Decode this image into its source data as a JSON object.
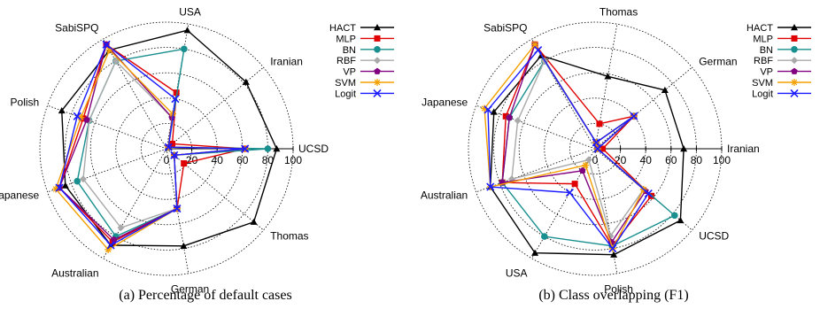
{
  "figure": {
    "captions": [
      "(a) Percentage of default cases",
      "(b) Class overlapping (F1)"
    ]
  },
  "legend": {
    "entries": [
      {
        "name": "HACT",
        "color": "#000000",
        "marker": "triangle"
      },
      {
        "name": "MLP",
        "color": "#e00000",
        "marker": "square"
      },
      {
        "name": "BN",
        "color": "#1a8f8f",
        "marker": "circle"
      },
      {
        "name": "RBF",
        "color": "#a9a9a9",
        "marker": "diamond"
      },
      {
        "name": "VP",
        "color": "#800080",
        "marker": "pentagon"
      },
      {
        "name": "SVM",
        "color": "#f5a000",
        "marker": "asterisk"
      },
      {
        "name": "Logit",
        "color": "#1a1aff",
        "marker": "x"
      }
    ]
  },
  "chart_data": [
    {
      "type": "radar",
      "caption": "(a) Percentage of default cases",
      "axes": [
        "UCSD",
        "Iranian",
        "USA",
        "SabiSPQ",
        "Polish",
        "Japanese",
        "Australian",
        "German",
        "Thomas"
      ],
      "ticks": [
        "0",
        "20",
        "40",
        "60",
        "80",
        "100"
      ],
      "rlim": [
        0,
        100
      ],
      "series": [
        {
          "name": "HACT",
          "values": [
            87,
            82,
            95,
            90,
            88,
            85,
            88,
            78,
            90
          ]
        },
        {
          "name": "MLP",
          "values": [
            62,
            6,
            45,
            95,
            70,
            90,
            85,
            48,
            18
          ]
        },
        {
          "name": "BN",
          "values": [
            80,
            2,
            80,
            80,
            65,
            75,
            80,
            48,
            8
          ]
        },
        {
          "name": "RBF",
          "values": [
            62,
            2,
            25,
            80,
            65,
            70,
            72,
            48,
            8
          ]
        },
        {
          "name": "VP",
          "values": [
            62,
            2,
            25,
            95,
            67,
            90,
            83,
            48,
            8
          ]
        },
        {
          "name": "SVM",
          "values": [
            62,
            2,
            28,
            90,
            72,
            93,
            92,
            48,
            8
          ]
        },
        {
          "name": "Logit",
          "values": [
            62,
            2,
            40,
            95,
            75,
            90,
            88,
            48,
            8
          ]
        }
      ]
    },
    {
      "type": "radar",
      "caption": "(b) Class overlapping (F1)",
      "axes": [
        "Iranian",
        "German",
        "Thomas",
        "SabiSPQ",
        "Japanese",
        "Australian",
        "USA",
        "Polish",
        "UCSD"
      ],
      "ticks": [
        "0",
        "20",
        "40",
        "60",
        "80",
        "100"
      ],
      "rlim": [
        0,
        100
      ],
      "series": [
        {
          "name": "HACT",
          "values": [
            70,
            72,
            58,
            85,
            85,
            88,
            95,
            85,
            88
          ]
        },
        {
          "name": "MLP",
          "values": [
            6,
            40,
            20,
            95,
            75,
            78,
            32,
            78,
            58
          ]
        },
        {
          "name": "BN",
          "values": [
            2,
            40,
            5,
            80,
            72,
            78,
            80,
            78,
            82
          ]
        },
        {
          "name": "RBF",
          "values": [
            2,
            40,
            5,
            80,
            65,
            70,
            10,
            70,
            50
          ]
        },
        {
          "name": "VP",
          "values": [
            2,
            40,
            5,
            95,
            72,
            78,
            20,
            75,
            52
          ]
        },
        {
          "name": "SVM",
          "values": [
            2,
            40,
            5,
            95,
            93,
            88,
            15,
            80,
            50
          ]
        },
        {
          "name": "Logit",
          "values": [
            2,
            40,
            5,
            90,
            90,
            88,
            40,
            80,
            55
          ]
        }
      ]
    }
  ]
}
